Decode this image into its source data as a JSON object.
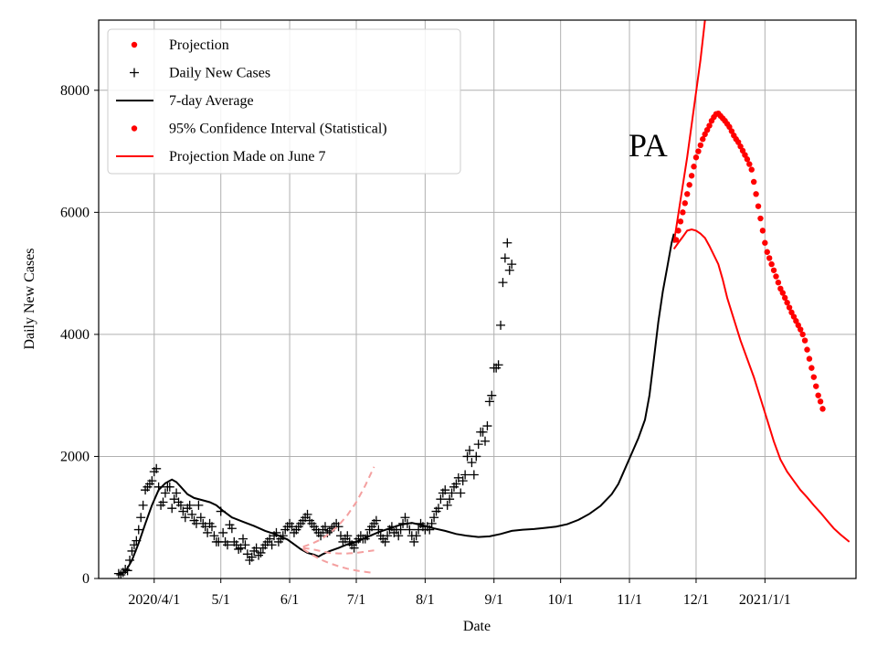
{
  "chart_data": {
    "type": "line",
    "title": "",
    "annotation": "PA",
    "xlabel": "Date",
    "ylabel": "Daily New Cases",
    "xlim_days": [
      -25,
      316
    ],
    "ylim": [
      0,
      9150
    ],
    "grid": true,
    "legend_position": "top-left",
    "x_ticks": [
      {
        "day": 0,
        "label": "2020/4/1"
      },
      {
        "day": 30,
        "label": "5/1"
      },
      {
        "day": 61,
        "label": "6/1"
      },
      {
        "day": 91,
        "label": "7/1"
      },
      {
        "day": 122,
        "label": "8/1"
      },
      {
        "day": 153,
        "label": "9/1"
      },
      {
        "day": 183,
        "label": "10/1"
      },
      {
        "day": 214,
        "label": "11/1"
      },
      {
        "day": 244,
        "label": "12/1"
      },
      {
        "day": 275,
        "label": "2021/1/1"
      }
    ],
    "y_ticks": [
      0,
      2000,
      4000,
      6000,
      8000
    ],
    "legend": [
      {
        "label": "Projection",
        "marker": "dot",
        "color": "#ff0000"
      },
      {
        "label": "Daily New Cases",
        "marker": "plus",
        "color": "#000000"
      },
      {
        "label": "7-day Average",
        "marker": "line",
        "color": "#000000"
      },
      {
        "label": "95% Confidence Interval (Statistical)",
        "marker": "dot",
        "color": "#ff0000"
      },
      {
        "label": "Projection Made on June 7",
        "marker": "line",
        "color": "#ff0000"
      }
    ],
    "series": [
      {
        "name": "Daily New Cases",
        "style": "plus",
        "color": "#000000",
        "x_start_day": -16,
        "step_days": 1,
        "values": [
          80,
          60,
          100,
          150,
          130,
          300,
          450,
          550,
          620,
          800,
          1000,
          1200,
          1450,
          1500,
          1550,
          1600,
          1750,
          1800,
          1500,
          1200,
          1250,
          1400,
          1500,
          1500,
          1150,
          1300,
          1400,
          1250,
          1200,
          1100,
          1000,
          1150,
          1200,
          1050,
          950,
          900,
          1200,
          1000,
          900,
          850,
          750,
          900,
          850,
          700,
          600,
          600,
          1100,
          750,
          600,
          550,
          880,
          820,
          600,
          550,
          480,
          500,
          650,
          550,
          400,
          300,
          350,
          450,
          500,
          380,
          420,
          500,
          550,
          600,
          650,
          550,
          700,
          750,
          600,
          650,
          700,
          800,
          850,
          900,
          850,
          750,
          800,
          850,
          900,
          950,
          1000,
          1050,
          950,
          900,
          850,
          800,
          750,
          700,
          800,
          850,
          750,
          780,
          820,
          850,
          900,
          850,
          700,
          600,
          650,
          700,
          600,
          550,
          500,
          600,
          650,
          700,
          650,
          650,
          700,
          800,
          850,
          900,
          950,
          800,
          700,
          650,
          600,
          700,
          800,
          850,
          750,
          800,
          700,
          800,
          900,
          1000,
          900,
          800,
          700,
          600,
          700,
          800,
          900,
          850,
          800,
          850,
          800,
          900,
          1000,
          1100,
          1150,
          1300,
          1400,
          1450,
          1200,
          1300,
          1400,
          1500,
          1550,
          1650,
          1400,
          1600,
          1700,
          2000,
          2100,
          1900,
          1700,
          2000,
          2200,
          2400,
          2400,
          2250,
          2500,
          2900,
          3000,
          3450,
          3450,
          3500,
          4150,
          4850,
          5250,
          5500,
          5050,
          5150
        ]
      },
      {
        "name": "7-day Average",
        "style": "line",
        "color": "#000000",
        "points": [
          [
            -16,
            60
          ],
          [
            -13,
            110
          ],
          [
            -10,
            300
          ],
          [
            -7,
            580
          ],
          [
            -4,
            900
          ],
          [
            -1,
            1200
          ],
          [
            2,
            1450
          ],
          [
            5,
            1560
          ],
          [
            8,
            1620
          ],
          [
            10,
            1580
          ],
          [
            12,
            1500
          ],
          [
            15,
            1380
          ],
          [
            18,
            1320
          ],
          [
            22,
            1280
          ],
          [
            25,
            1250
          ],
          [
            28,
            1200
          ],
          [
            31,
            1110
          ],
          [
            35,
            1000
          ],
          [
            40,
            930
          ],
          [
            45,
            860
          ],
          [
            50,
            780
          ],
          [
            55,
            720
          ],
          [
            60,
            640
          ],
          [
            63,
            560
          ],
          [
            66,
            480
          ],
          [
            69,
            420
          ],
          [
            72,
            390
          ],
          [
            74,
            360
          ],
          [
            76,
            400
          ],
          [
            79,
            450
          ],
          [
            83,
            500
          ],
          [
            87,
            560
          ],
          [
            91,
            600
          ],
          [
            96,
            680
          ],
          [
            101,
            760
          ],
          [
            106,
            820
          ],
          [
            111,
            880
          ],
          [
            116,
            910
          ],
          [
            121,
            870
          ],
          [
            126,
            820
          ],
          [
            131,
            780
          ],
          [
            136,
            730
          ],
          [
            141,
            700
          ],
          [
            146,
            680
          ],
          [
            151,
            690
          ],
          [
            156,
            730
          ],
          [
            161,
            780
          ],
          [
            166,
            800
          ],
          [
            171,
            810
          ],
          [
            176,
            830
          ],
          [
            181,
            850
          ],
          [
            186,
            890
          ],
          [
            191,
            960
          ],
          [
            196,
            1060
          ],
          [
            201,
            1190
          ],
          [
            206,
            1380
          ],
          [
            209,
            1550
          ],
          [
            212,
            1800
          ],
          [
            215,
            2050
          ],
          [
            218,
            2300
          ],
          [
            221,
            2600
          ],
          [
            223,
            3000
          ],
          [
            225,
            3600
          ],
          [
            227,
            4200
          ],
          [
            229,
            4700
          ],
          [
            231,
            5100
          ],
          [
            233,
            5500
          ],
          [
            234,
            5650
          ]
        ]
      },
      {
        "name": "Projection",
        "style": "dot",
        "color": "#ff0000",
        "points": [
          [
            235,
            5550
          ],
          [
            236,
            5700
          ],
          [
            237,
            5850
          ],
          [
            238,
            6000
          ],
          [
            239,
            6150
          ],
          [
            240,
            6300
          ],
          [
            241,
            6450
          ],
          [
            242,
            6600
          ],
          [
            243,
            6750
          ],
          [
            244,
            6900
          ],
          [
            245,
            7000
          ],
          [
            246,
            7100
          ],
          [
            247,
            7200
          ],
          [
            248,
            7280
          ],
          [
            249,
            7350
          ],
          [
            250,
            7420
          ],
          [
            251,
            7500
          ],
          [
            252,
            7560
          ],
          [
            253,
            7610
          ],
          [
            254,
            7620
          ],
          [
            255,
            7580
          ],
          [
            256,
            7540
          ],
          [
            257,
            7500
          ],
          [
            258,
            7450
          ],
          [
            259,
            7400
          ],
          [
            260,
            7330
          ],
          [
            261,
            7260
          ],
          [
            262,
            7200
          ],
          [
            263,
            7150
          ],
          [
            264,
            7080
          ],
          [
            265,
            7010
          ],
          [
            266,
            6940
          ],
          [
            267,
            6870
          ],
          [
            268,
            6790
          ],
          [
            269,
            6700
          ],
          [
            270,
            6500
          ],
          [
            271,
            6300
          ],
          [
            272,
            6100
          ],
          [
            273,
            5900
          ],
          [
            274,
            5700
          ],
          [
            275,
            5500
          ],
          [
            276,
            5350
          ],
          [
            277,
            5250
          ],
          [
            278,
            5150
          ],
          [
            279,
            5050
          ],
          [
            280,
            4950
          ],
          [
            281,
            4850
          ],
          [
            282,
            4750
          ],
          [
            283,
            4680
          ],
          [
            284,
            4600
          ],
          [
            285,
            4520
          ],
          [
            286,
            4440
          ],
          [
            287,
            4360
          ],
          [
            288,
            4290
          ],
          [
            289,
            4220
          ],
          [
            290,
            4150
          ],
          [
            291,
            4080
          ],
          [
            292,
            4000
          ],
          [
            293,
            3900
          ],
          [
            294,
            3750
          ],
          [
            295,
            3600
          ],
          [
            296,
            3450
          ],
          [
            297,
            3300
          ],
          [
            298,
            3150
          ],
          [
            299,
            3000
          ],
          [
            300,
            2900
          ],
          [
            301,
            2780
          ]
        ]
      },
      {
        "name": "95% CI upper bound",
        "style": "line",
        "color": "#ff0000",
        "points": [
          [
            234,
            5500
          ],
          [
            237,
            6200
          ],
          [
            240,
            6900
          ],
          [
            243,
            7700
          ],
          [
            246,
            8500
          ],
          [
            248,
            9150
          ]
        ]
      },
      {
        "name": "95% CI lower bound",
        "style": "line",
        "color": "#ff0000",
        "points": [
          [
            234,
            5400
          ],
          [
            236,
            5500
          ],
          [
            238,
            5600
          ],
          [
            240,
            5700
          ],
          [
            242,
            5720
          ],
          [
            244,
            5700
          ],
          [
            246,
            5650
          ],
          [
            248,
            5580
          ],
          [
            250,
            5450
          ],
          [
            252,
            5300
          ],
          [
            254,
            5150
          ],
          [
            256,
            4900
          ],
          [
            258,
            4600
          ],
          [
            261,
            4250
          ],
          [
            264,
            3900
          ],
          [
            267,
            3600
          ],
          [
            270,
            3300
          ],
          [
            273,
            2950
          ],
          [
            276,
            2600
          ],
          [
            279,
            2250
          ],
          [
            282,
            1950
          ],
          [
            285,
            1750
          ],
          [
            288,
            1600
          ],
          [
            291,
            1450
          ],
          [
            294,
            1330
          ],
          [
            297,
            1200
          ],
          [
            300,
            1080
          ],
          [
            303,
            950
          ],
          [
            306,
            820
          ],
          [
            309,
            720
          ],
          [
            312,
            630
          ],
          [
            313,
            600
          ]
        ]
      },
      {
        "name": "Projection Made on June 7 (central)",
        "style": "dashed",
        "color": "#f4a0a0",
        "points": [
          [
            67,
            500
          ],
          [
            71,
            480
          ],
          [
            75,
            450
          ],
          [
            79,
            420
          ],
          [
            83,
            410
          ],
          [
            87,
            410
          ],
          [
            91,
            420
          ],
          [
            95,
            440
          ],
          [
            99,
            460
          ]
        ]
      },
      {
        "name": "Projection Made on June 7 (upper)",
        "style": "dashed",
        "color": "#f4a0a0",
        "points": [
          [
            67,
            520
          ],
          [
            71,
            570
          ],
          [
            75,
            640
          ],
          [
            79,
            740
          ],
          [
            83,
            870
          ],
          [
            87,
            1040
          ],
          [
            91,
            1250
          ],
          [
            95,
            1520
          ],
          [
            99,
            1830
          ]
        ]
      },
      {
        "name": "Projection Made on June 7 (lower)",
        "style": "dashed",
        "color": "#f4a0a0",
        "points": [
          [
            67,
            480
          ],
          [
            71,
            390
          ],
          [
            75,
            310
          ],
          [
            79,
            250
          ],
          [
            83,
            200
          ],
          [
            87,
            160
          ],
          [
            91,
            130
          ],
          [
            95,
            110
          ],
          [
            99,
            90
          ]
        ]
      }
    ]
  }
}
